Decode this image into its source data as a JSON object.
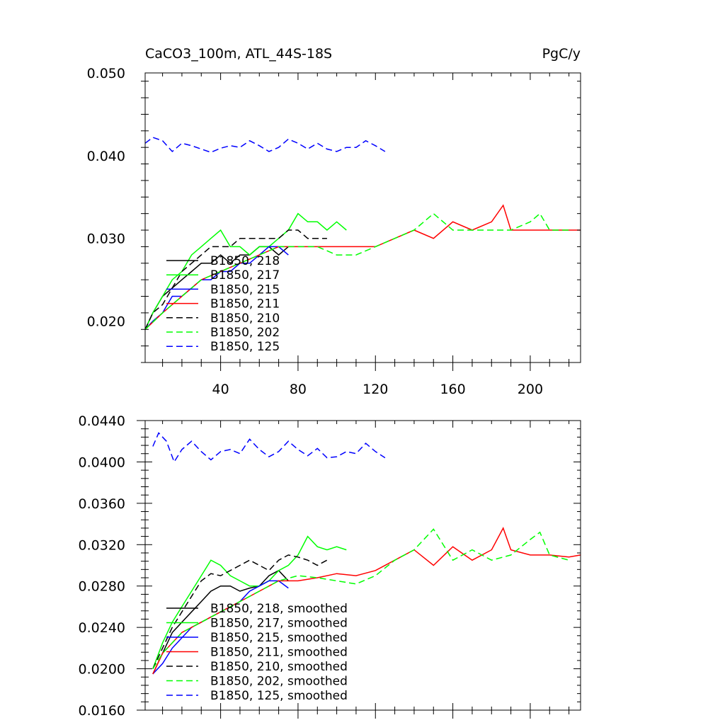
{
  "chart_data": [
    {
      "type": "line",
      "title": "CaCO3_100m, ATL_44S-18S",
      "units": "PgC/y",
      "xlabel": "",
      "ylabel": "",
      "xlim": [
        1,
        226
      ],
      "ylim": [
        0.015,
        0.05
      ],
      "x_ticks": [
        40,
        80,
        120,
        160,
        200
      ],
      "x_tick_labels": [
        "40",
        "80",
        "120",
        "160",
        "200"
      ],
      "y_ticks": [
        0.02,
        0.03,
        0.04,
        0.05
      ],
      "y_tick_labels": [
        "0.020",
        "0.030",
        "0.040",
        "0.050"
      ],
      "grid": false,
      "legend_position": "lower-left",
      "series": [
        {
          "name": "B1850, 218",
          "color": "#000000",
          "dash": "solid",
          "x": [
            1,
            5,
            10,
            15,
            20,
            25,
            30,
            35,
            40,
            45,
            50,
            55,
            60,
            65,
            70,
            75
          ],
          "y": [
            0.019,
            0.021,
            0.023,
            0.024,
            0.025,
            0.026,
            0.027,
            0.027,
            0.028,
            0.027,
            0.028,
            0.028,
            0.029,
            0.029,
            0.028,
            0.029
          ]
        },
        {
          "name": "B1850, 217",
          "color": "#00ff00",
          "dash": "solid",
          "x": [
            1,
            5,
            10,
            15,
            20,
            25,
            30,
            35,
            40,
            45,
            50,
            55,
            60,
            65,
            70,
            75,
            80,
            85,
            90,
            95,
            100,
            105
          ],
          "y": [
            0.019,
            0.021,
            0.023,
            0.025,
            0.026,
            0.028,
            0.029,
            0.03,
            0.031,
            0.029,
            0.029,
            0.028,
            0.029,
            0.029,
            0.03,
            0.031,
            0.033,
            0.032,
            0.032,
            0.031,
            0.032,
            0.031
          ]
        },
        {
          "name": "B1850, 215",
          "color": "#0000ff",
          "dash": "solid",
          "x": [
            1,
            5,
            10,
            15,
            20,
            25,
            30,
            35,
            40,
            45,
            50,
            55,
            60,
            65,
            70,
            75
          ],
          "y": [
            0.019,
            0.02,
            0.021,
            0.023,
            0.023,
            0.024,
            0.025,
            0.025,
            0.026,
            0.026,
            0.027,
            0.027,
            0.028,
            0.029,
            0.029,
            0.028
          ]
        },
        {
          "name": "B1850, 211",
          "color": "#ff0000",
          "dash": "solid",
          "x": [
            1,
            10,
            20,
            30,
            40,
            50,
            60,
            70,
            80,
            90,
            100,
            110,
            120,
            130,
            140,
            150,
            160,
            170,
            180,
            186,
            190,
            200,
            210,
            220,
            226
          ],
          "y": [
            0.019,
            0.021,
            0.023,
            0.025,
            0.026,
            0.027,
            0.028,
            0.029,
            0.029,
            0.029,
            0.029,
            0.029,
            0.029,
            0.03,
            0.031,
            0.03,
            0.032,
            0.031,
            0.032,
            0.034,
            0.031,
            0.031,
            0.031,
            0.031,
            0.031
          ]
        },
        {
          "name": "B1850, 210",
          "color": "#000000",
          "dash": "dashed",
          "x": [
            1,
            5,
            10,
            15,
            20,
            25,
            30,
            35,
            40,
            45,
            50,
            55,
            60,
            65,
            70,
            75,
            80,
            85,
            90,
            95
          ],
          "y": [
            0.019,
            0.021,
            0.022,
            0.024,
            0.026,
            0.027,
            0.028,
            0.029,
            0.029,
            0.029,
            0.03,
            0.03,
            0.03,
            0.03,
            0.03,
            0.031,
            0.031,
            0.03,
            0.03,
            0.03
          ]
        },
        {
          "name": "B1850, 202",
          "color": "#00ff00",
          "dash": "dashed",
          "x": [
            1,
            10,
            20,
            30,
            40,
            50,
            60,
            70,
            80,
            90,
            100,
            110,
            120,
            130,
            140,
            150,
            160,
            170,
            180,
            190,
            200,
            205,
            210,
            220
          ],
          "y": [
            0.019,
            0.021,
            0.023,
            0.025,
            0.026,
            0.027,
            0.028,
            0.029,
            0.029,
            0.029,
            0.028,
            0.028,
            0.029,
            0.03,
            0.031,
            0.033,
            0.031,
            0.031,
            0.031,
            0.031,
            0.032,
            0.033,
            0.031,
            0.031
          ]
        },
        {
          "name": "B1850, 125",
          "color": "#0000ff",
          "dash": "dashed",
          "x": [
            1,
            5,
            10,
            15,
            20,
            25,
            30,
            35,
            40,
            45,
            50,
            55,
            60,
            65,
            70,
            75,
            80,
            85,
            90,
            95,
            100,
            105,
            110,
            115,
            120,
            125
          ],
          "y": [
            0.0415,
            0.0422,
            0.0418,
            0.0405,
            0.0415,
            0.0412,
            0.0408,
            0.0404,
            0.0409,
            0.0412,
            0.041,
            0.0418,
            0.0412,
            0.0405,
            0.041,
            0.042,
            0.0415,
            0.0408,
            0.0415,
            0.0408,
            0.0405,
            0.041,
            0.041,
            0.0418,
            0.0412,
            0.0405
          ]
        }
      ]
    },
    {
      "type": "line",
      "title": "",
      "xlabel": "",
      "ylabel": "",
      "xlim": [
        1,
        226
      ],
      "ylim": [
        0.016,
        0.044
      ],
      "x_ticks": [
        40,
        80,
        120,
        160,
        200
      ],
      "y_ticks": [
        0.016,
        0.02,
        0.024,
        0.028,
        0.032,
        0.036,
        0.04,
        0.044
      ],
      "y_tick_labels": [
        "0.0160",
        "0.0200",
        "0.0240",
        "0.0280",
        "0.0320",
        "0.0360",
        "0.0400",
        "0.0440"
      ],
      "grid": false,
      "legend_position": "lower-left",
      "series": [
        {
          "name": "B1850, 218, smoothed",
          "color": "#000000",
          "dash": "solid",
          "x": [
            5,
            10,
            15,
            20,
            25,
            30,
            35,
            40,
            45,
            50,
            55,
            60,
            65,
            70,
            75
          ],
          "y": [
            0.0195,
            0.0215,
            0.0235,
            0.0245,
            0.0255,
            0.0265,
            0.0275,
            0.028,
            0.028,
            0.0275,
            0.0278,
            0.028,
            0.029,
            0.0295,
            0.0285
          ]
        },
        {
          "name": "B1850, 217, smoothed",
          "color": "#00ff00",
          "dash": "solid",
          "x": [
            5,
            10,
            15,
            20,
            25,
            30,
            35,
            40,
            45,
            50,
            55,
            60,
            65,
            70,
            75,
            80,
            85,
            90,
            95,
            100,
            105
          ],
          "y": [
            0.02,
            0.0225,
            0.0245,
            0.026,
            0.0275,
            0.029,
            0.0305,
            0.03,
            0.029,
            0.0285,
            0.028,
            0.028,
            0.0285,
            0.0295,
            0.03,
            0.031,
            0.0328,
            0.0318,
            0.0315,
            0.0318,
            0.0315
          ]
        },
        {
          "name": "B1850, 215, smoothed",
          "color": "#0000ff",
          "dash": "solid",
          "x": [
            5,
            10,
            15,
            20,
            25,
            30,
            35,
            40,
            45,
            50,
            55,
            60,
            65,
            70,
            75
          ],
          "y": [
            0.0195,
            0.0205,
            0.022,
            0.023,
            0.024,
            0.0245,
            0.025,
            0.0255,
            0.026,
            0.0265,
            0.0275,
            0.028,
            0.0285,
            0.0285,
            0.0278
          ]
        },
        {
          "name": "B1850, 211, smoothed",
          "color": "#ff0000",
          "dash": "solid",
          "x": [
            5,
            10,
            20,
            30,
            40,
            50,
            60,
            70,
            80,
            90,
            100,
            110,
            120,
            130,
            140,
            150,
            160,
            170,
            180,
            186,
            190,
            200,
            210,
            220,
            226
          ],
          "y": [
            0.0195,
            0.0215,
            0.0235,
            0.0245,
            0.0255,
            0.0265,
            0.0275,
            0.0285,
            0.0285,
            0.0288,
            0.0292,
            0.029,
            0.0295,
            0.0305,
            0.0315,
            0.03,
            0.0318,
            0.0305,
            0.0315,
            0.0336,
            0.0315,
            0.031,
            0.031,
            0.0308,
            0.031
          ]
        },
        {
          "name": "B1850, 210, smoothed",
          "color": "#000000",
          "dash": "dashed",
          "x": [
            5,
            10,
            15,
            20,
            25,
            30,
            35,
            40,
            45,
            50,
            55,
            60,
            65,
            70,
            75,
            80,
            85,
            90,
            95
          ],
          "y": [
            0.02,
            0.022,
            0.024,
            0.0255,
            0.027,
            0.0285,
            0.0292,
            0.029,
            0.0295,
            0.03,
            0.0305,
            0.03,
            0.0295,
            0.0305,
            0.031,
            0.0308,
            0.0305,
            0.03,
            0.0305
          ]
        },
        {
          "name": "B1850, 202, smoothed",
          "color": "#00ff00",
          "dash": "dashed",
          "x": [
            5,
            10,
            20,
            30,
            40,
            50,
            60,
            70,
            80,
            90,
            100,
            110,
            120,
            130,
            140,
            150,
            160,
            170,
            180,
            190,
            200,
            205,
            210,
            220
          ],
          "y": [
            0.02,
            0.0215,
            0.0235,
            0.0245,
            0.0255,
            0.0265,
            0.0275,
            0.0285,
            0.029,
            0.0288,
            0.0285,
            0.0282,
            0.029,
            0.0305,
            0.0315,
            0.0335,
            0.0305,
            0.0315,
            0.0305,
            0.031,
            0.0325,
            0.0332,
            0.031,
            0.0305
          ]
        },
        {
          "name": "B1850, 125, smoothed",
          "color": "#0000ff",
          "dash": "dashed",
          "x": [
            5,
            8,
            12,
            16,
            20,
            25,
            30,
            35,
            40,
            45,
            50,
            55,
            60,
            65,
            70,
            75,
            80,
            85,
            90,
            95,
            100,
            105,
            110,
            115,
            120,
            125
          ],
          "y": [
            0.0415,
            0.0428,
            0.042,
            0.04,
            0.0412,
            0.042,
            0.041,
            0.0402,
            0.041,
            0.0412,
            0.0408,
            0.0422,
            0.0412,
            0.0405,
            0.041,
            0.042,
            0.0412,
            0.0406,
            0.0413,
            0.0404,
            0.0405,
            0.041,
            0.0408,
            0.0418,
            0.041,
            0.0404
          ]
        }
      ]
    }
  ]
}
